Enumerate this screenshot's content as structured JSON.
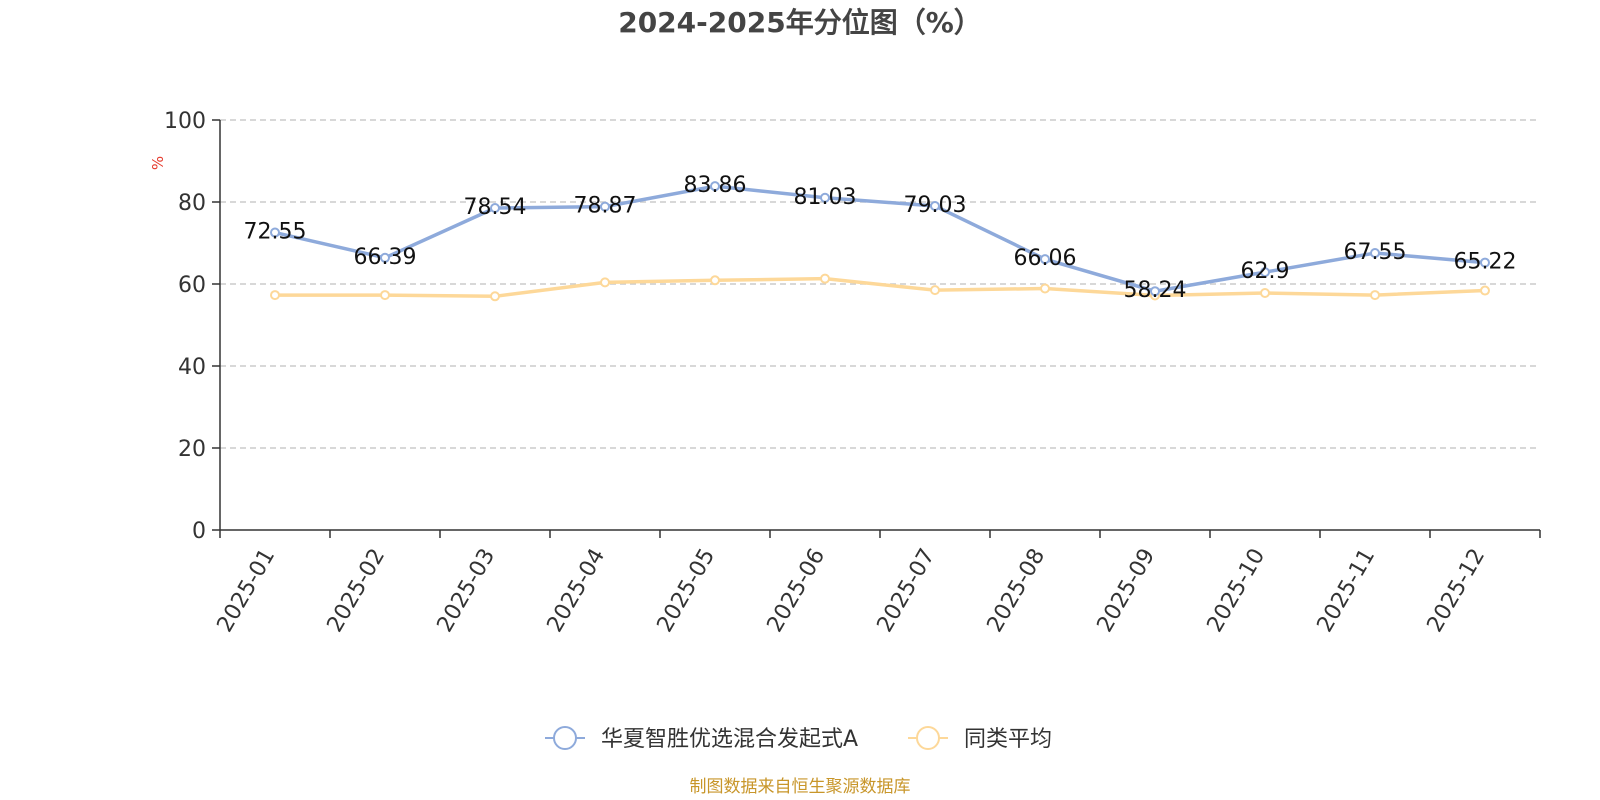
{
  "chart_data": {
    "type": "line",
    "title": "2024-2025年分位图（%）",
    "ylabel": "%",
    "xlabel": "",
    "ylim": [
      0,
      100
    ],
    "yticks": [
      0,
      20,
      40,
      60,
      80,
      100
    ],
    "grid": true,
    "categories": [
      "2025-01",
      "2025-02",
      "2025-03",
      "2025-04",
      "2025-05",
      "2025-06",
      "2025-07",
      "2025-08",
      "2025-09",
      "2025-10",
      "2025-11",
      "2025-12"
    ],
    "series": [
      {
        "name": "华夏智胜优选混合发起式A",
        "color": "#8eaadb",
        "show_labels": true,
        "labels": [
          "72.55",
          "66.39",
          "78.54",
          "78.87",
          "83.86",
          "81.03",
          "79.03",
          "66.06",
          "58.24",
          "62.9",
          "67.55",
          "65.22"
        ],
        "values": [
          72.55,
          66.39,
          78.54,
          78.87,
          83.86,
          81.03,
          79.03,
          66.06,
          58.24,
          62.9,
          67.55,
          65.22
        ]
      },
      {
        "name": "同类平均",
        "color": "#fdd899",
        "show_labels": false,
        "values": [
          57.3,
          57.3,
          57.0,
          60.4,
          60.9,
          61.3,
          58.5,
          58.9,
          57.2,
          57.8,
          57.3,
          58.4
        ]
      }
    ],
    "legend_position": "bottom-center",
    "source": "制图数据来自恒生聚源数据库",
    "colors": {
      "unit": "#e63b2e",
      "source": "#c8962a",
      "axis": "#333333",
      "grid": "#cccccc"
    }
  }
}
